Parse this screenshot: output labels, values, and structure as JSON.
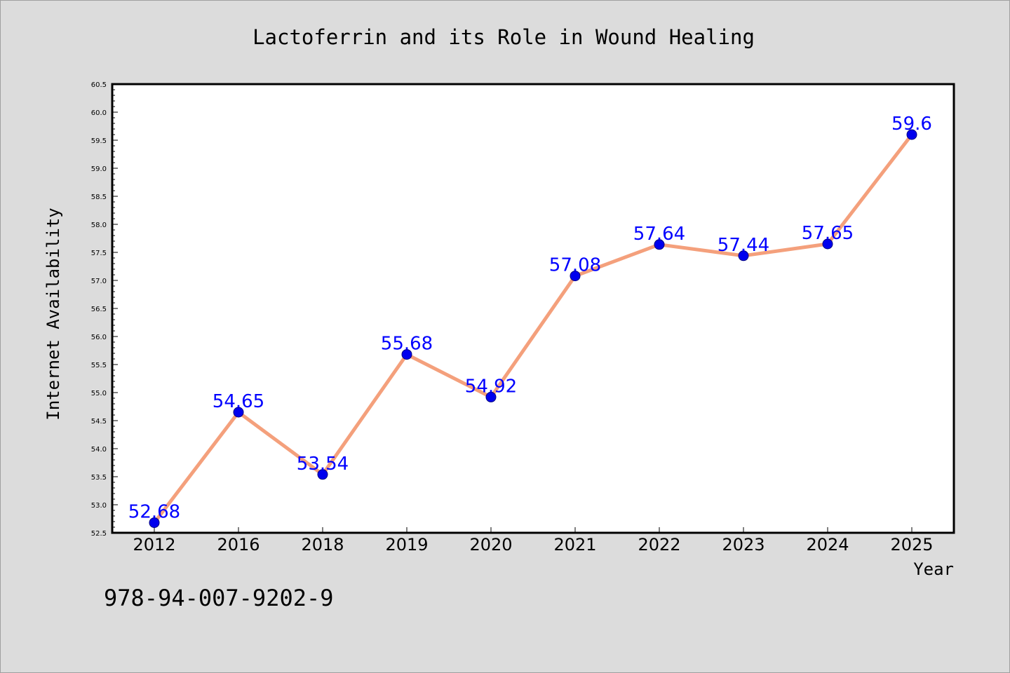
{
  "footer_code": "978-94-007-9202-9",
  "chart_data": {
    "type": "line",
    "title": "Lactoferrin and its Role in Wound Healing",
    "xlabel": "Year",
    "ylabel": "Internet Availability",
    "categories": [
      "2012",
      "2016",
      "2018",
      "2019",
      "2020",
      "2021",
      "2022",
      "2023",
      "2024",
      "2025"
    ],
    "series": [
      {
        "values": [
          52.68,
          54.65,
          53.54,
          55.68,
          54.92,
          57.08,
          57.64,
          57.44,
          57.65,
          59.6
        ],
        "data_labels": [
          "52.68",
          "54.65",
          "53.54",
          "55.68",
          "54.92",
          "57.08",
          "57.64",
          "57.44",
          "57.65",
          "59.6"
        ],
        "line_color": "#f4a07c",
        "marker_color": "#0000ee"
      }
    ],
    "ylim": [
      52.5,
      60.5
    ],
    "yticks": [
      "52.5",
      "53.0",
      "53.5",
      "54.0",
      "54.5",
      "55.0",
      "55.5",
      "56.0",
      "56.5",
      "57.0",
      "57.5",
      "58.0",
      "58.5",
      "59.0",
      "59.5",
      "60.0",
      "60.5"
    ],
    "data_label_color": "#0000ff",
    "background_color": "#dcdcdc",
    "grid": false,
    "legend": "none"
  }
}
